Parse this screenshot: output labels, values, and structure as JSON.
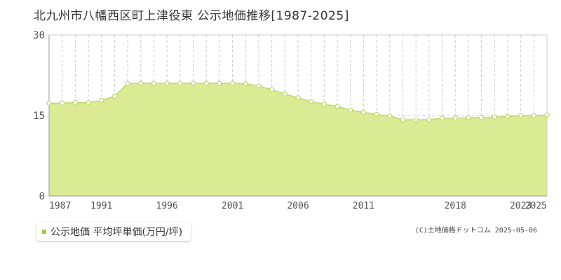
{
  "title": "北九州市八幡西区町上津役東 公示地価推移[1987-2025]",
  "legend_label": "公示地価 平均坪単価(万円/坪)",
  "credit": "(C)土地価格ドットコム 2025-05-06",
  "colors": {
    "fill": "#dbeb94",
    "line": "#bcd86a",
    "marker_stroke": "#bcd86a",
    "marker_fill": "#ffffff",
    "legend_marker": "#a3c93a",
    "grid": "#cccccc",
    "axis": "#999999",
    "tick_text": "#555555"
  },
  "chart_data": {
    "type": "area",
    "ylim": [
      0,
      30
    ],
    "xlim": [
      1987,
      2025
    ],
    "yticks": [
      0,
      15,
      30
    ],
    "xtick_labels": [
      1987,
      1991,
      1996,
      2001,
      2006,
      2011,
      2018,
      2023,
      2025
    ],
    "grid": true,
    "series": [
      {
        "name": "公示地価 平均坪単価(万円/坪)",
        "x": [
          1987,
          1988,
          1989,
          1990,
          1991,
          1992,
          1993,
          1994,
          1995,
          1996,
          1997,
          1998,
          1999,
          2000,
          2001,
          2002,
          2003,
          2004,
          2005,
          2006,
          2007,
          2008,
          2009,
          2010,
          2011,
          2012,
          2013,
          2014,
          2015,
          2016,
          2017,
          2018,
          2019,
          2020,
          2021,
          2022,
          2023,
          2024,
          2025
        ],
        "values": [
          17.3,
          17.3,
          17.4,
          17.4,
          17.8,
          18.6,
          21.0,
          21.0,
          21.0,
          21.0,
          21.0,
          21.0,
          21.0,
          21.0,
          21.0,
          20.9,
          20.5,
          19.8,
          19.0,
          18.3,
          17.6,
          17.1,
          16.7,
          16.0,
          15.6,
          15.2,
          14.9,
          14.2,
          14.2,
          14.2,
          14.5,
          14.5,
          14.6,
          14.6,
          14.7,
          14.8,
          15.0,
          15.0,
          15.1
        ]
      }
    ]
  }
}
